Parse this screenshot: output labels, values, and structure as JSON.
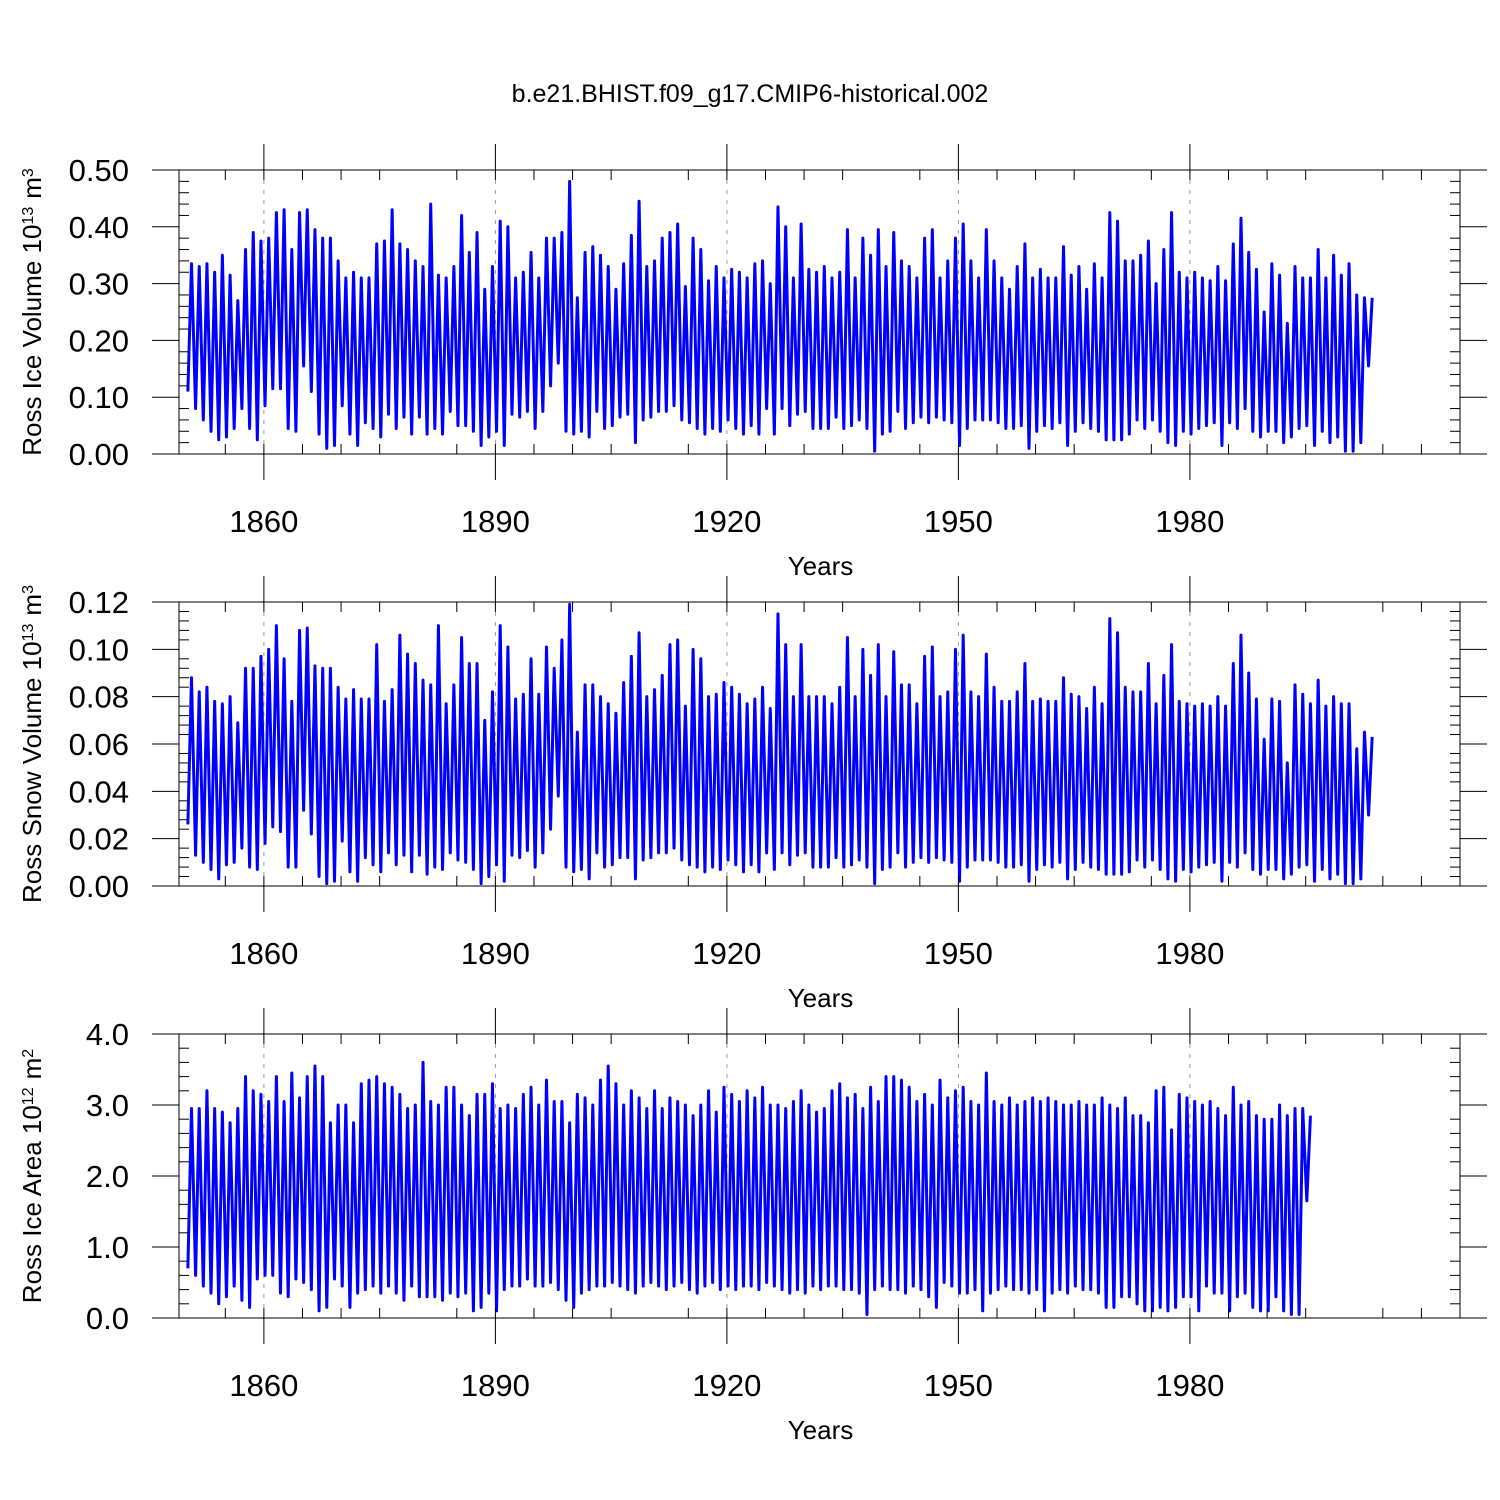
{
  "figure": {
    "title": "b.e21.BHIST.f09_g17.CMIP6-historical.002",
    "line_color": "#0000ff",
    "grid_color": "#999999"
  },
  "chart_data": [
    {
      "type": "line",
      "title": "",
      "xlabel": "Years",
      "ylabel_text": "Ross Ice Volume 10",
      "ylabel_exp": "13",
      "ylabel_unit": "m",
      "ylabel_unit_exp": "3",
      "xlim": [
        1849,
        2015
      ],
      "ylim": [
        0,
        0.5
      ],
      "x_ticks": [
        1860,
        1890,
        1920,
        1950,
        1980
      ],
      "x_tick_labels": [
        "1860",
        "1890",
        "1920",
        "1950",
        "1980"
      ],
      "y_ticks": [
        0,
        0.1,
        0.2,
        0.3,
        0.4,
        0.5
      ],
      "y_tick_labels": [
        "0.00",
        "0.10",
        "0.20",
        "0.30",
        "0.40",
        "0.50"
      ],
      "grid": "vertical dashed at labelled years",
      "series": [
        {
          "name": "Ross Ice Volume",
          "x_start": 1850,
          "x_step": 1,
          "annual_max": [
            0.335,
            0.33,
            0.335,
            0.32,
            0.35,
            0.315,
            0.27,
            0.36,
            0.39,
            0.375,
            0.38,
            0.425,
            0.43,
            0.36,
            0.425,
            0.43,
            0.395,
            0.38,
            0.38,
            0.34,
            0.31,
            0.32,
            0.31,
            0.31,
            0.37,
            0.375,
            0.43,
            0.37,
            0.36,
            0.34,
            0.33,
            0.44,
            0.315,
            0.31,
            0.33,
            0.42,
            0.355,
            0.39,
            0.29,
            0.33,
            0.41,
            0.4,
            0.31,
            0.32,
            0.355,
            0.31,
            0.38,
            0.38,
            0.39,
            0.48,
            0.275,
            0.355,
            0.365,
            0.35,
            0.33,
            0.29,
            0.335,
            0.385,
            0.445,
            0.33,
            0.34,
            0.38,
            0.39,
            0.405,
            0.295,
            0.38,
            0.36,
            0.305,
            0.33,
            0.31,
            0.325,
            0.32,
            0.31,
            0.335,
            0.34,
            0.3,
            0.435,
            0.4,
            0.31,
            0.405,
            0.325,
            0.32,
            0.33,
            0.31,
            0.32,
            0.395,
            0.31,
            0.38,
            0.35,
            0.395,
            0.33,
            0.39,
            0.34,
            0.33,
            0.31,
            0.38,
            0.395,
            0.31,
            0.34,
            0.38,
            0.405,
            0.34,
            0.31,
            0.395,
            0.34,
            0.31,
            0.29,
            0.33,
            0.37,
            0.31,
            0.325,
            0.31,
            0.31,
            0.365,
            0.315,
            0.33,
            0.29,
            0.335,
            0.31,
            0.425,
            0.41,
            0.34,
            0.34,
            0.35,
            0.375,
            0.3,
            0.36,
            0.425,
            0.32,
            0.31,
            0.32,
            0.31,
            0.305,
            0.33,
            0.305,
            0.37,
            0.415,
            0.355,
            0.325,
            0.25,
            0.335,
            0.315,
            0.23,
            0.33,
            0.31,
            0.31,
            0.36,
            0.31,
            0.35,
            0.315,
            0.335,
            0.28,
            0.275,
            0.275
          ],
          "annual_min": [
            0.11,
            0.08,
            0.06,
            0.04,
            0.025,
            0.03,
            0.045,
            0.08,
            0.045,
            0.025,
            0.085,
            0.115,
            0.115,
            0.045,
            0.04,
            0.155,
            0.11,
            0.035,
            0.01,
            0.015,
            0.085,
            0.035,
            0.015,
            0.055,
            0.045,
            0.03,
            0.07,
            0.045,
            0.065,
            0.035,
            0.065,
            0.035,
            0.045,
            0.035,
            0.075,
            0.05,
            0.05,
            0.04,
            0.015,
            0.03,
            0.04,
            0.015,
            0.07,
            0.065,
            0.075,
            0.045,
            0.075,
            0.12,
            0.16,
            0.04,
            0.035,
            0.04,
            0.03,
            0.075,
            0.045,
            0.05,
            0.065,
            0.07,
            0.02,
            0.06,
            0.065,
            0.075,
            0.075,
            0.085,
            0.06,
            0.055,
            0.045,
            0.035,
            0.045,
            0.04,
            0.06,
            0.045,
            0.035,
            0.05,
            0.035,
            0.08,
            0.035,
            0.08,
            0.05,
            0.07,
            0.075,
            0.045,
            0.045,
            0.045,
            0.065,
            0.045,
            0.05,
            0.06,
            0.045,
            0.005,
            0.035,
            0.04,
            0.075,
            0.045,
            0.055,
            0.065,
            0.055,
            0.065,
            0.06,
            0.055,
            0.015,
            0.045,
            0.06,
            0.06,
            0.06,
            0.055,
            0.045,
            0.045,
            0.05,
            0.01,
            0.04,
            0.05,
            0.045,
            0.055,
            0.015,
            0.04,
            0.055,
            0.045,
            0.04,
            0.025,
            0.025,
            0.025,
            0.035,
            0.06,
            0.045,
            0.06,
            0.04,
            0.02,
            0.015,
            0.04,
            0.035,
            0.045,
            0.05,
            0.055,
            0.015,
            0.055,
            0.045,
            0.08,
            0.04,
            0.03,
            0.04,
            0.04,
            0.02,
            0.03,
            0.045,
            0.05,
            0.015,
            0.04,
            0.02,
            0.03,
            0.005,
            0.005,
            0.02,
            0.155
          ]
        }
      ]
    },
    {
      "type": "line",
      "title": "",
      "xlabel": "Years",
      "ylabel_text": "Ross Snow Volume 10",
      "ylabel_exp": "13",
      "ylabel_unit": "m",
      "ylabel_unit_exp": "3",
      "xlim": [
        1849,
        2015
      ],
      "ylim": [
        0,
        0.12
      ],
      "x_ticks": [
        1860,
        1890,
        1920,
        1950,
        1980
      ],
      "x_tick_labels": [
        "1860",
        "1890",
        "1920",
        "1950",
        "1980"
      ],
      "y_ticks": [
        0,
        0.02,
        0.04,
        0.06,
        0.08,
        0.1,
        0.12
      ],
      "y_tick_labels": [
        "0.00",
        "0.02",
        "0.04",
        "0.06",
        "0.08",
        "0.10",
        "0.12"
      ],
      "grid": "vertical dashed at labelled years",
      "series": [
        {
          "name": "Ross Snow Volume",
          "x_start": 1850,
          "x_step": 1,
          "annual_max": [
            0.088,
            0.082,
            0.084,
            0.078,
            0.077,
            0.08,
            0.069,
            0.092,
            0.092,
            0.097,
            0.1,
            0.11,
            0.096,
            0.078,
            0.108,
            0.109,
            0.093,
            0.092,
            0.092,
            0.084,
            0.079,
            0.083,
            0.079,
            0.079,
            0.102,
            0.078,
            0.083,
            0.106,
            0.098,
            0.094,
            0.087,
            0.085,
            0.11,
            0.077,
            0.085,
            0.105,
            0.094,
            0.094,
            0.07,
            0.082,
            0.11,
            0.101,
            0.079,
            0.081,
            0.096,
            0.081,
            0.101,
            0.092,
            0.104,
            0.119,
            0.065,
            0.085,
            0.085,
            0.08,
            0.077,
            0.073,
            0.086,
            0.097,
            0.107,
            0.08,
            0.083,
            0.089,
            0.102,
            0.104,
            0.076,
            0.1,
            0.096,
            0.08,
            0.081,
            0.086,
            0.084,
            0.081,
            0.077,
            0.079,
            0.084,
            0.075,
            0.115,
            0.102,
            0.08,
            0.102,
            0.08,
            0.08,
            0.08,
            0.077,
            0.084,
            0.105,
            0.08,
            0.1,
            0.089,
            0.102,
            0.08,
            0.099,
            0.085,
            0.085,
            0.077,
            0.097,
            0.101,
            0.08,
            0.082,
            0.1,
            0.106,
            0.082,
            0.08,
            0.098,
            0.084,
            0.078,
            0.078,
            0.082,
            0.094,
            0.078,
            0.079,
            0.078,
            0.078,
            0.088,
            0.081,
            0.08,
            0.075,
            0.084,
            0.077,
            0.113,
            0.107,
            0.084,
            0.082,
            0.082,
            0.094,
            0.077,
            0.089,
            0.102,
            0.078,
            0.077,
            0.076,
            0.077,
            0.076,
            0.08,
            0.076,
            0.094,
            0.106,
            0.09,
            0.079,
            0.062,
            0.079,
            0.078,
            0.052,
            0.085,
            0.081,
            0.077,
            0.087,
            0.076,
            0.08,
            0.077,
            0.077,
            0.058,
            0.065,
            0.063
          ],
          "annual_min": [
            0.026,
            0.013,
            0.01,
            0.007,
            0.003,
            0.009,
            0.01,
            0.016,
            0.008,
            0.007,
            0.018,
            0.025,
            0.023,
            0.008,
            0.008,
            0.032,
            0.022,
            0.004,
            0.001,
            0.002,
            0.019,
            0.006,
            0.002,
            0.012,
            0.009,
            0.006,
            0.014,
            0.009,
            0.013,
            0.006,
            0.013,
            0.005,
            0.008,
            0.007,
            0.014,
            0.011,
            0.01,
            0.007,
            0.001,
            0.004,
            0.009,
            0.002,
            0.013,
            0.012,
            0.015,
            0.008,
            0.014,
            0.024,
            0.038,
            0.008,
            0.006,
            0.007,
            0.003,
            0.014,
            0.008,
            0.009,
            0.012,
            0.012,
            0.003,
            0.011,
            0.012,
            0.014,
            0.014,
            0.016,
            0.011,
            0.009,
            0.008,
            0.006,
            0.008,
            0.007,
            0.011,
            0.009,
            0.006,
            0.009,
            0.006,
            0.014,
            0.007,
            0.014,
            0.009,
            0.013,
            0.014,
            0.008,
            0.008,
            0.008,
            0.012,
            0.008,
            0.009,
            0.011,
            0.008,
            0.001,
            0.007,
            0.008,
            0.014,
            0.008,
            0.01,
            0.012,
            0.01,
            0.012,
            0.011,
            0.01,
            0.002,
            0.008,
            0.011,
            0.011,
            0.011,
            0.01,
            0.008,
            0.008,
            0.009,
            0.002,
            0.007,
            0.009,
            0.008,
            0.01,
            0.003,
            0.007,
            0.01,
            0.008,
            0.007,
            0.005,
            0.005,
            0.005,
            0.006,
            0.011,
            0.008,
            0.011,
            0.007,
            0.003,
            0.002,
            0.007,
            0.006,
            0.008,
            0.009,
            0.01,
            0.002,
            0.01,
            0.008,
            0.014,
            0.007,
            0.005,
            0.007,
            0.007,
            0.003,
            0.005,
            0.008,
            0.009,
            0.002,
            0.007,
            0.003,
            0.005,
            0.001,
            0.001,
            0.003,
            0.03
          ]
        }
      ]
    },
    {
      "type": "line",
      "title": "",
      "xlabel": "Years",
      "ylabel_text": "Ross Ice Area 10",
      "ylabel_exp": "12",
      "ylabel_unit": "m",
      "ylabel_unit_exp": "2",
      "xlim": [
        1849,
        2015
      ],
      "ylim": [
        0,
        4
      ],
      "x_ticks": [
        1860,
        1890,
        1920,
        1950,
        1980
      ],
      "x_tick_labels": [
        "1860",
        "1890",
        "1920",
        "1950",
        "1980"
      ],
      "y_ticks": [
        0,
        1,
        2,
        3,
        4
      ],
      "y_tick_labels": [
        "0.0",
        "1.0",
        "2.0",
        "3.0",
        "4.0"
      ],
      "grid": "vertical dashed at labelled years",
      "series": [
        {
          "name": "Ross Ice Area",
          "x_start": 1850,
          "x_step": 1,
          "annual_max": [
            2.95,
            2.95,
            3.2,
            2.95,
            2.9,
            2.75,
            2.95,
            3.4,
            3.2,
            3.15,
            3.05,
            3.4,
            3.05,
            3.45,
            3.1,
            3.4,
            3.55,
            3.4,
            2.75,
            3.0,
            3.0,
            2.75,
            3.3,
            3.35,
            3.4,
            3.3,
            3.25,
            3.15,
            2.95,
            3.0,
            3.6,
            3.05,
            3.0,
            3.25,
            3.25,
            3.0,
            2.85,
            3.15,
            3.15,
            3.3,
            2.95,
            3.0,
            2.95,
            3.15,
            3.25,
            3.0,
            3.35,
            3.05,
            3.05,
            2.75,
            3.15,
            3.1,
            3.0,
            3.35,
            3.55,
            3.3,
            3.0,
            3.2,
            3.1,
            2.95,
            3.2,
            2.95,
            3.1,
            3.05,
            3.0,
            2.85,
            3.0,
            3.2,
            2.9,
            3.25,
            3.15,
            3.05,
            3.2,
            3.1,
            3.25,
            3.0,
            3.0,
            2.95,
            3.05,
            3.2,
            3.0,
            2.9,
            2.95,
            3.2,
            3.3,
            3.1,
            3.15,
            2.95,
            3.25,
            3.05,
            3.4,
            3.4,
            3.35,
            3.25,
            3.05,
            3.15,
            3.0,
            3.35,
            3.1,
            3.2,
            3.25,
            3.05,
            3.0,
            3.45,
            3.05,
            3.0,
            3.1,
            3.0,
            3.05,
            3.1,
            3.05,
            3.1,
            3.05,
            3.0,
            3.0,
            3.05,
            3.0,
            3.0,
            3.1,
            3.0,
            2.95,
            3.1,
            2.85,
            2.85,
            2.75,
            3.2,
            3.25,
            2.65,
            3.15,
            3.1,
            3.05,
            3.0,
            3.05,
            2.95,
            2.85,
            3.25,
            3.0,
            3.05,
            2.85,
            2.8,
            2.8,
            3.0,
            2.85,
            2.95,
            2.95,
            2.85
          ],
          "annual_min": [
            0.7,
            0.6,
            0.45,
            0.35,
            0.2,
            0.3,
            0.45,
            0.25,
            0.15,
            0.55,
            0.6,
            0.6,
            0.35,
            0.3,
            0.55,
            0.5,
            0.4,
            0.1,
            0.15,
            0.55,
            0.45,
            0.15,
            0.35,
            0.4,
            0.45,
            0.35,
            0.45,
            0.35,
            0.25,
            0.45,
            0.3,
            0.3,
            0.3,
            0.25,
            0.35,
            0.3,
            0.35,
            0.1,
            0.15,
            0.35,
            0.1,
            0.4,
            0.45,
            0.45,
            0.55,
            0.45,
            0.45,
            0.5,
            0.4,
            0.25,
            0.15,
            0.35,
            0.4,
            0.45,
            0.45,
            0.5,
            0.45,
            0.4,
            0.35,
            0.45,
            0.5,
            0.45,
            0.4,
            0.45,
            0.5,
            0.4,
            0.35,
            0.45,
            0.5,
            0.4,
            0.45,
            0.4,
            0.45,
            0.45,
            0.4,
            0.5,
            0.45,
            0.4,
            0.35,
            0.4,
            0.35,
            0.45,
            0.4,
            0.45,
            0.45,
            0.4,
            0.4,
            0.35,
            0.05,
            0.4,
            0.45,
            0.4,
            0.4,
            0.35,
            0.45,
            0.4,
            0.3,
            0.15,
            0.5,
            0.45,
            0.35,
            0.35,
            0.4,
            0.1,
            0.35,
            0.4,
            0.45,
            0.4,
            0.4,
            0.35,
            0.4,
            0.1,
            0.35,
            0.4,
            0.35,
            0.45,
            0.4,
            0.4,
            0.35,
            0.15,
            0.15,
            0.3,
            0.3,
            0.2,
            0.1,
            0.1,
            0.15,
            0.1,
            0.15,
            0.3,
            0.3,
            0.1,
            0.45,
            0.35,
            0.35,
            0.1,
            0.3,
            0.35,
            0.15,
            0.1,
            0.1,
            0.3,
            0.1,
            0.05,
            0.05,
            1.65
          ]
        }
      ]
    }
  ]
}
